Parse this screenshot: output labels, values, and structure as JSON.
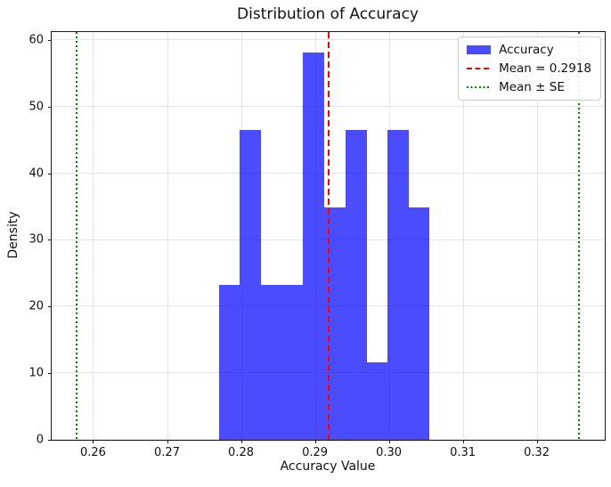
{
  "title": "Distribution of Accuracy",
  "axes": {
    "xlabel": "Accuracy Value",
    "ylabel": "Density"
  },
  "legend": {
    "items": [
      {
        "label": "Accuracy",
        "swatch": "patch",
        "color": "rgba(0,0,255,0.7)"
      },
      {
        "label": "Mean = 0.2918",
        "swatch": "dashed",
        "color": "#ff0000"
      },
      {
        "label": "Mean ± SE",
        "swatch": "dotted",
        "color": "#008000"
      }
    ]
  },
  "chart_data": {
    "type": "bar",
    "subtype": "histogram",
    "title": "Distribution of Accuracy",
    "xlabel": "Accuracy Value",
    "ylabel": "Density",
    "bin_edges": [
      0.277,
      0.2798,
      0.2827,
      0.2855,
      0.2884,
      0.2912,
      0.2941,
      0.297,
      0.2998,
      0.3027,
      0.3055
    ],
    "densities": [
      23.3,
      46.5,
      23.3,
      23.3,
      58.1,
      34.9,
      46.5,
      11.6,
      46.5,
      34.9
    ],
    "mean_value": 0.2918,
    "se_band_values": [
      0.2578,
      0.3257
    ],
    "xlim": [
      0.2544,
      0.3292
    ],
    "ylim": [
      0,
      61.2
    ],
    "xtick_values": [
      0.26,
      0.27,
      0.28,
      0.29,
      0.3,
      0.31,
      0.32
    ],
    "xtick_labels": [
      "0.26",
      "0.27",
      "0.28",
      "0.29",
      "0.30",
      "0.31",
      "0.32"
    ],
    "ytick_values": [
      0,
      10,
      20,
      30,
      40,
      50,
      60
    ],
    "ytick_labels": [
      "0",
      "10",
      "20",
      "30",
      "40",
      "50",
      "60"
    ],
    "grid": true,
    "legend_position": "upper right",
    "colors": {
      "bar_fill": "rgba(0,0,255,0.7)",
      "mean_line": "#ff0000",
      "se_line": "#008000",
      "grid_line": "#e4e4e4"
    }
  }
}
